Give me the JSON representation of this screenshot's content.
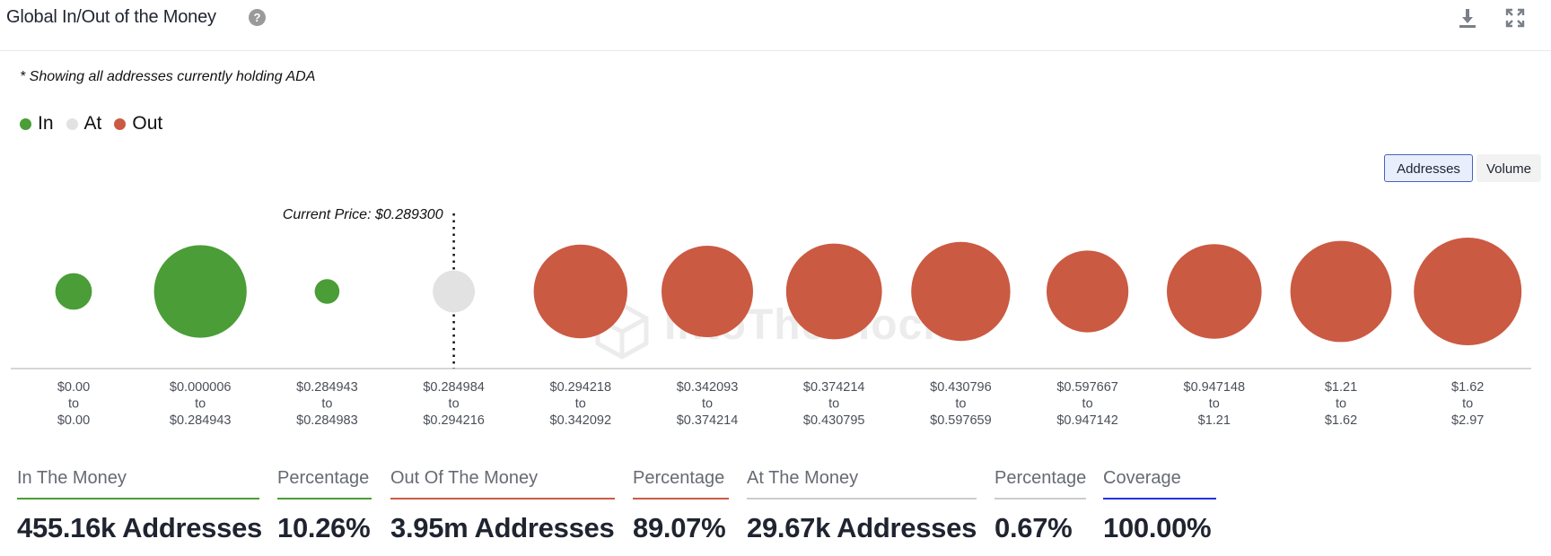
{
  "header": {
    "title": "Global In/Out of the Money",
    "help_glyph": "?"
  },
  "note": "* Showing all addresses currently holding ADA",
  "legend": [
    {
      "label": "In",
      "color": "#4a9d37"
    },
    {
      "label": "At",
      "color": "#e2e2e2"
    },
    {
      "label": "Out",
      "color": "#cb5a42"
    }
  ],
  "toggle": {
    "addresses_label": "Addresses",
    "volume_label": "Volume",
    "selected": "Addresses"
  },
  "watermark": "IntoTheBlock",
  "chart_data": {
    "type": "bubble",
    "metric": "Addresses",
    "current_price_label": "Current Price: $0.289300",
    "current_price_index": 3,
    "bins": [
      {
        "from": "$0.00",
        "to": "$0.00",
        "status": "in",
        "size": 0.34
      },
      {
        "from": "$0.000006",
        "to": "$0.284943",
        "status": "in",
        "size": 0.86
      },
      {
        "from": "$0.284943",
        "to": "$0.284983",
        "status": "in",
        "size": 0.23
      },
      {
        "from": "$0.284984",
        "to": "$0.294216",
        "status": "at",
        "size": 0.39
      },
      {
        "from": "$0.294218",
        "to": "$0.342092",
        "status": "out",
        "size": 0.87
      },
      {
        "from": "$0.342093",
        "to": "$0.374214",
        "status": "out",
        "size": 0.85
      },
      {
        "from": "$0.374214",
        "to": "$0.430795",
        "status": "out",
        "size": 0.89
      },
      {
        "from": "$0.430796",
        "to": "$0.597659",
        "status": "out",
        "size": 0.92
      },
      {
        "from": "$0.597667",
        "to": "$0.947142",
        "status": "out",
        "size": 0.76
      },
      {
        "from": "$0.947148",
        "to": "$1.21",
        "status": "out",
        "size": 0.88
      },
      {
        "from": "$1.21",
        "to": "$1.62",
        "status": "out",
        "size": 0.94
      },
      {
        "from": "$1.62",
        "to": "$2.97",
        "status": "out",
        "size": 1.0
      }
    ],
    "range_separator": "to",
    "colors": {
      "in": "#4a9d37",
      "at": "#e2e2e2",
      "out": "#cb5a42"
    }
  },
  "stats": [
    {
      "label": "In The Money",
      "value": "455.16k Addresses",
      "color": "#4a9d37"
    },
    {
      "label": "Percentage",
      "value": "10.26%",
      "color": "#4a9d37"
    },
    {
      "label": "Out Of The Money",
      "value": "3.95m Addresses",
      "color": "#cb5a42"
    },
    {
      "label": "Percentage",
      "value": "89.07%",
      "color": "#cb5a42"
    },
    {
      "label": "At The Money",
      "value": "29.67k Addresses",
      "color": "#cccccc"
    },
    {
      "label": "Percentage",
      "value": "0.67%",
      "color": "#cccccc"
    },
    {
      "label": "Coverage",
      "value": "100.00%",
      "color": "#2233dd"
    }
  ]
}
